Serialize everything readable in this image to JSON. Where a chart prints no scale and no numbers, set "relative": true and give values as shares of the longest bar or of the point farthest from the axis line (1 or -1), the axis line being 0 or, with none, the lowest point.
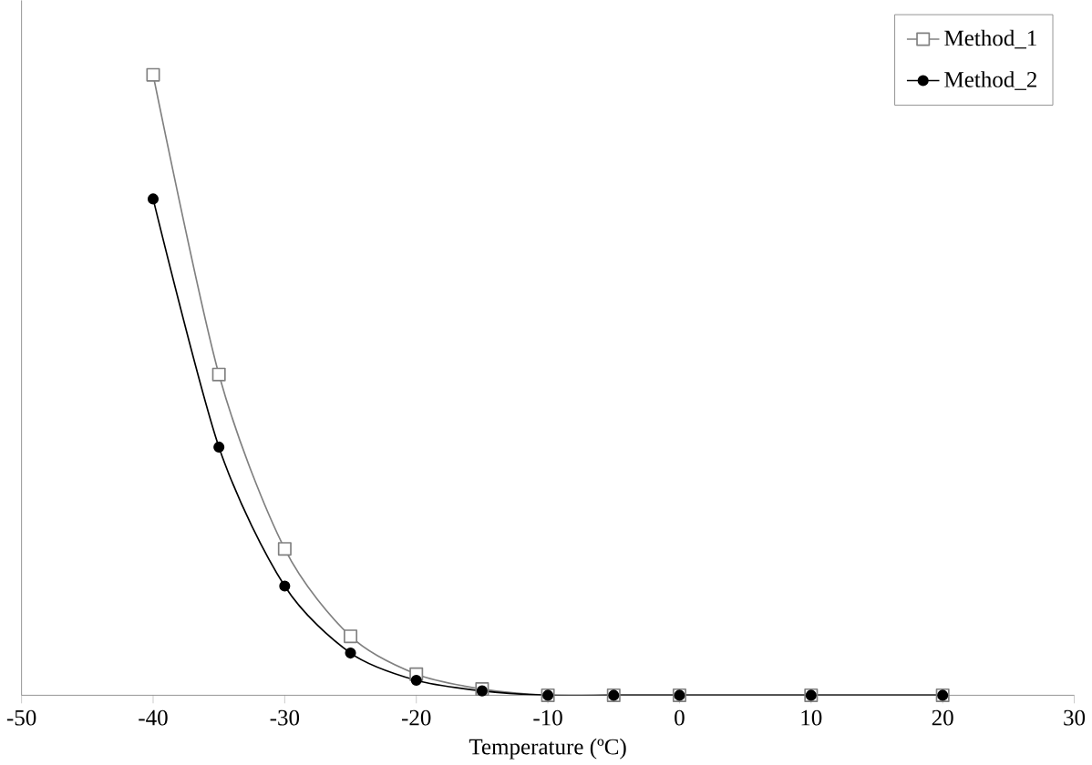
{
  "chart_data": {
    "type": "line",
    "xlabel": "Temperature (ºC)",
    "relative": true,
    "x": [
      -40,
      -35,
      -30,
      -25,
      -20,
      -15,
      -10,
      -5,
      0,
      10,
      20
    ],
    "xlim": [
      -50,
      30
    ],
    "xticks": [
      -50,
      -40,
      -30,
      -20,
      -10,
      0,
      10,
      20,
      30
    ],
    "legend": "top right",
    "grid": false,
    "series": [
      {
        "name": "Method_1",
        "color": "#808080",
        "marker": "square",
        "values": [
          1,
          0.517,
          0.236,
          0.095,
          0.034,
          0.01,
          0,
          0,
          0,
          0,
          0
        ]
      },
      {
        "name": "Method_2",
        "color": "#000000",
        "marker": "circle",
        "values": [
          0.8,
          0.4,
          0.176,
          0.068,
          0.024,
          0.007,
          0,
          0,
          0,
          0,
          0
        ]
      }
    ]
  }
}
